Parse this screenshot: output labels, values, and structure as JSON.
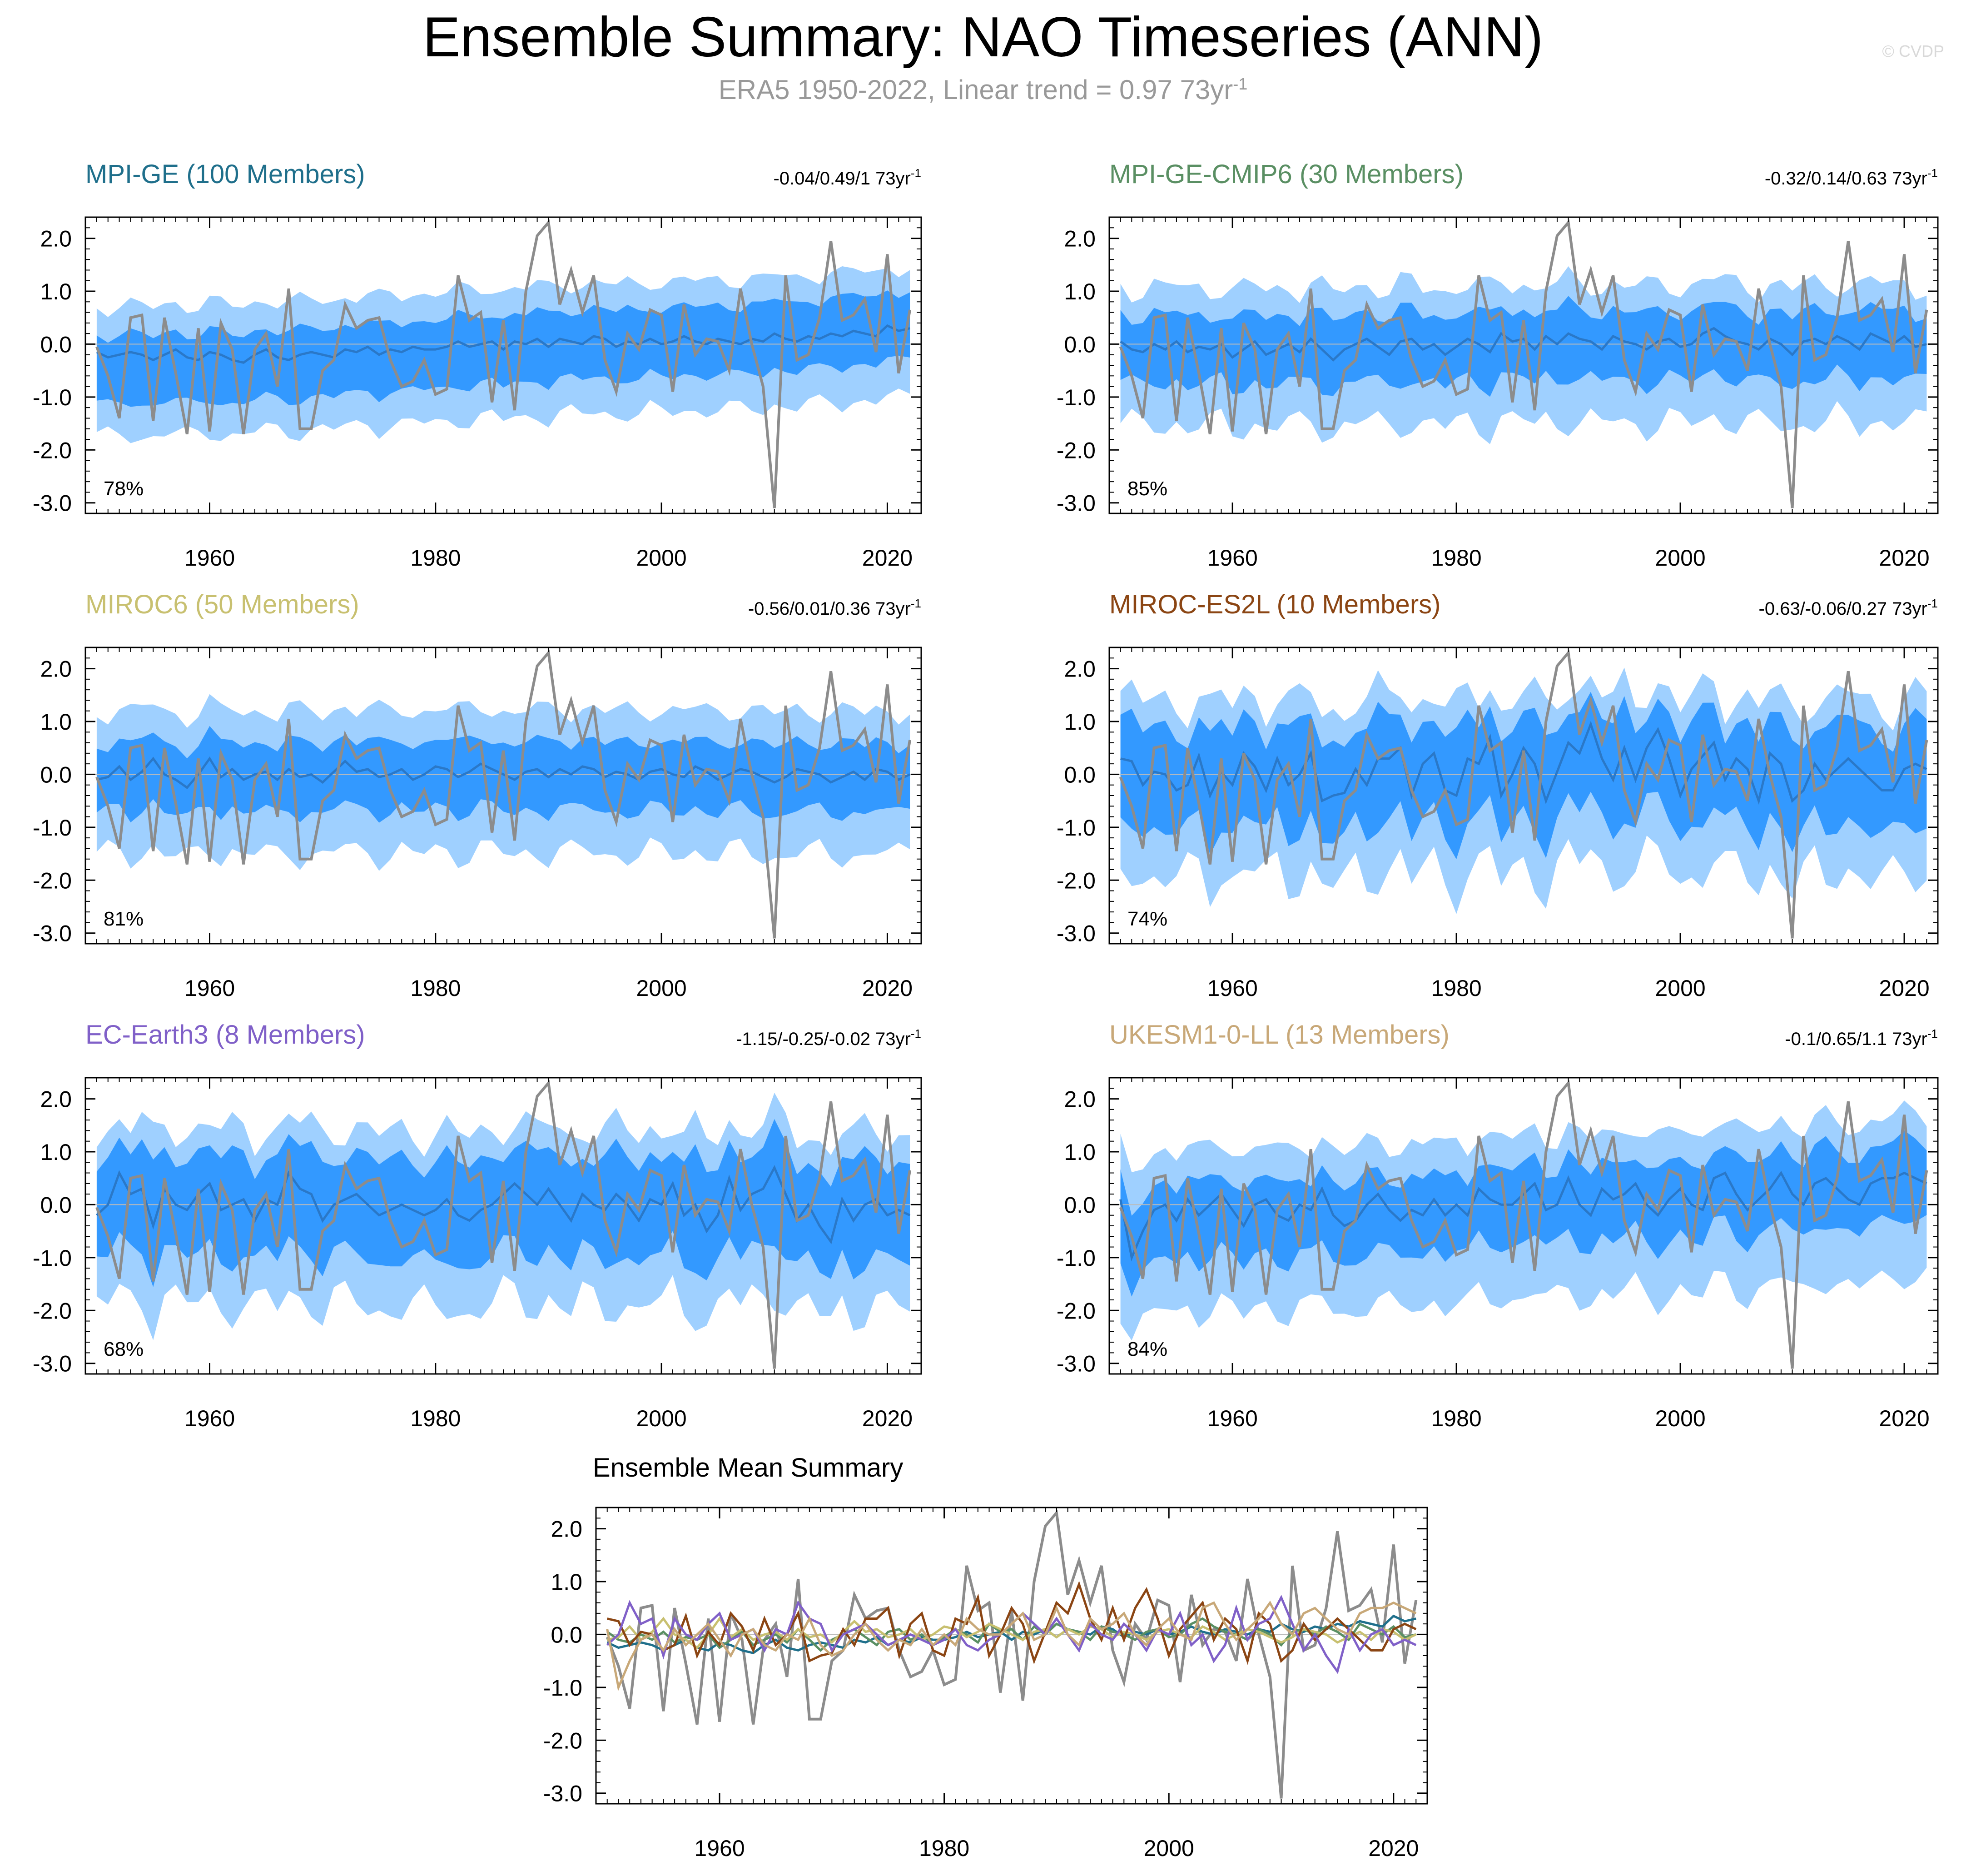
{
  "title": "Ensemble Summary: NAO Timeseries (ANN)",
  "subtitle": {
    "text": "ERA5 1950-2022, Linear trend = 0.97 73yr",
    "sup": "-1"
  },
  "watermark": "© CVDP",
  "colors": {
    "inner_band": "#3399ff",
    "outer_band": "#9fd0ff",
    "ens_mean": "#2a78c8",
    "obs": "#8c8c8c",
    "zero_line": "#bbbbbb"
  },
  "chart_data": {
    "type": "line",
    "x_ticks": [
      1960,
      1980,
      2000,
      2020
    ],
    "x_range": [
      1949,
      2023
    ],
    "y_ticks": [
      2.0,
      1.0,
      0.0,
      -1.0,
      -2.0,
      -3.0
    ],
    "y_tick_labels": [
      "2.0",
      "1.0",
      "0.0",
      "-1.0",
      "-2.0",
      "-3.0"
    ],
    "observations": {
      "name": "ERA5",
      "years": [
        1950,
        1951,
        1952,
        1953,
        1954,
        1955,
        1956,
        1957,
        1958,
        1959,
        1960,
        1961,
        1962,
        1963,
        1964,
        1965,
        1966,
        1967,
        1968,
        1969,
        1970,
        1971,
        1972,
        1973,
        1974,
        1975,
        1976,
        1977,
        1978,
        1979,
        1980,
        1981,
        1982,
        1983,
        1984,
        1985,
        1986,
        1987,
        1988,
        1989,
        1990,
        1991,
        1992,
        1993,
        1994,
        1995,
        1996,
        1997,
        1998,
        1999,
        2000,
        2001,
        2002,
        2003,
        2004,
        2005,
        2006,
        2007,
        2008,
        2009,
        2010,
        2011,
        2012,
        2013,
        2014,
        2015,
        2016,
        2017,
        2018,
        2019,
        2020,
        2021,
        2022
      ],
      "values": [
        -0.05,
        -0.6,
        -1.4,
        0.5,
        0.55,
        -1.45,
        0.5,
        -0.55,
        -1.7,
        0.3,
        -1.65,
        0.4,
        -0.1,
        -1.7,
        -0.1,
        0.2,
        -0.8,
        1.05,
        -1.6,
        -1.6,
        -0.5,
        -0.3,
        0.75,
        0.3,
        0.45,
        0.5,
        -0.3,
        -0.8,
        -0.7,
        -0.3,
        -0.95,
        -0.85,
        1.3,
        0.45,
        0.6,
        -1.1,
        0.45,
        -1.25,
        1.0,
        2.05,
        2.3,
        0.75,
        1.4,
        0.6,
        1.3,
        -0.3,
        -0.9,
        0.2,
        -0.1,
        0.65,
        0.55,
        -0.9,
        0.75,
        -0.2,
        0.1,
        0.05,
        -0.5,
        1.05,
        0.0,
        -0.8,
        -3.1,
        1.3,
        -0.3,
        -0.2,
        0.5,
        1.95,
        0.45,
        0.55,
        0.85,
        -0.15,
        1.7,
        -0.55,
        0.65
      ]
    },
    "ensembles": [
      {
        "name": "MPI-GE",
        "members": 100,
        "title": "MPI-GE (100 Members)",
        "color": "#1f6f8b",
        "stats": {
          "text": "-0.04/0.49/1 73yr",
          "sup": "-1"
        },
        "percent": "78%",
        "ens_mean": [
          -0.15,
          -0.25,
          -0.2,
          -0.15,
          -0.2,
          -0.3,
          -0.2,
          -0.1,
          -0.25,
          -0.3,
          -0.15,
          -0.2,
          -0.3,
          -0.35,
          -0.2,
          -0.1,
          -0.25,
          -0.3,
          -0.2,
          -0.15,
          -0.2,
          -0.25,
          -0.1,
          -0.15,
          -0.05,
          -0.2,
          -0.1,
          -0.15,
          -0.05,
          -0.1,
          -0.1,
          -0.05,
          0.05,
          -0.05,
          0.0,
          0.05,
          -0.1,
          0.05,
          0.0,
          0.1,
          -0.05,
          0.1,
          0.05,
          0.0,
          0.15,
          0.1,
          -0.05,
          0.05,
          0.0,
          0.1,
          0.0,
          0.05,
          0.15,
          0.05,
          0.0,
          0.1,
          0.05,
          0.0,
          0.1,
          0.05,
          0.2,
          0.1,
          0.05,
          0.15,
          0.1,
          0.2,
          0.15,
          0.25,
          0.2,
          0.15,
          0.35,
          0.25,
          0.3
        ],
        "band_lo_outer": -1.4,
        "band_hi_outer": 1.05,
        "band_lo_inner": -0.75,
        "band_hi_inner": 0.55,
        "band_var": 0.22,
        "drift": 0.5
      },
      {
        "name": "MPI-GE-CMIP6",
        "members": 30,
        "title": "MPI-GE-CMIP6 (30 Members)",
        "color": "#5a8f63",
        "stats": {
          "text": "-0.32/0.14/0.63 73yr",
          "sup": "-1"
        },
        "percent": "85%",
        "ens_mean": [
          0.05,
          -0.1,
          -0.15,
          0.0,
          -0.1,
          0.05,
          -0.15,
          -0.05,
          -0.1,
          0.0,
          -0.25,
          -0.1,
          0.05,
          -0.2,
          -0.1,
          0.0,
          -0.15,
          0.1,
          -0.1,
          -0.3,
          -0.1,
          0.0,
          0.1,
          -0.05,
          -0.2,
          0.05,
          0.1,
          -0.1,
          0.0,
          -0.2,
          -0.05,
          0.1,
          0.0,
          -0.15,
          0.2,
          0.05,
          0.1,
          -0.1,
          0.15,
          0.0,
          0.2,
          0.1,
          0.05,
          -0.1,
          0.15,
          0.05,
          0.0,
          -0.1,
          0.05,
          0.1,
          -0.05,
          0.0,
          0.2,
          0.3,
          0.15,
          0.05,
          0.0,
          -0.1,
          0.1,
          0.0,
          -0.2,
          0.05,
          0.1,
          0.0,
          0.15,
          0.05,
          -0.1,
          0.2,
          0.1,
          0.0,
          0.15,
          -0.05,
          0.0
        ],
        "band_lo_outer": -1.5,
        "band_hi_outer": 1.1,
        "band_lo_inner": -0.7,
        "band_hi_inner": 0.6,
        "band_var": 0.35,
        "drift": 0.0
      },
      {
        "name": "MIROC6",
        "members": 50,
        "title": "MIROC6 (50 Members)",
        "color": "#c8c070",
        "stats": {
          "text": "-0.56/0.01/0.36 73yr",
          "sup": "-1"
        },
        "percent": "81%",
        "ens_mean": [
          -0.1,
          -0.05,
          0.15,
          -0.1,
          0.05,
          0.3,
          0.0,
          -0.1,
          -0.25,
          0.0,
          0.3,
          -0.05,
          0.1,
          -0.1,
          0.0,
          0.05,
          -0.1,
          0.1,
          -0.05,
          0.0,
          -0.15,
          0.05,
          0.25,
          0.05,
          0.1,
          -0.05,
          0.0,
          0.1,
          -0.1,
          0.0,
          0.15,
          0.1,
          -0.05,
          0.05,
          0.2,
          0.1,
          0.0,
          -0.1,
          0.05,
          0.1,
          -0.05,
          0.1,
          0.0,
          0.15,
          0.1,
          -0.05,
          0.05,
          0.0,
          -0.1,
          0.05,
          0.1,
          0.0,
          -0.05,
          0.15,
          0.05,
          -0.1,
          0.0,
          0.1,
          0.05,
          -0.05,
          -0.15,
          -0.05,
          0.1,
          0.05,
          0.0,
          -0.15,
          -0.05,
          0.05,
          -0.1,
          0.1,
          0.05,
          -0.1,
          0.0
        ],
        "band_lo_outer": -1.5,
        "band_hi_outer": 1.2,
        "band_lo_inner": -0.7,
        "band_hi_inner": 0.6,
        "band_var": 0.3,
        "drift": 0.0
      },
      {
        "name": "MIROC-ES2L",
        "members": 10,
        "title": "MIROC-ES2L (10 Members)",
        "color": "#8b4513",
        "stats": {
          "text": "-0.63/-0.06/0.27 73yr",
          "sup": "-1"
        },
        "percent": "74%",
        "ens_mean": [
          0.3,
          0.25,
          -0.2,
          0.05,
          0.0,
          -0.3,
          -0.2,
          0.35,
          -0.4,
          0.05,
          -0.2,
          0.4,
          0.15,
          -0.3,
          0.3,
          -0.2,
          0.0,
          0.4,
          -0.5,
          -0.4,
          -0.35,
          0.1,
          -0.2,
          0.3,
          0.3,
          0.5,
          -0.4,
          0.2,
          0.4,
          -0.3,
          -0.4,
          0.3,
          0.2,
          0.7,
          -0.4,
          0.0,
          0.5,
          0.2,
          -0.5,
          0.05,
          0.6,
          0.4,
          0.95,
          0.3,
          -0.1,
          0.5,
          -0.1,
          0.5,
          0.85,
          0.3,
          -0.4,
          0.1,
          0.35,
          0.6,
          -0.1,
          0.3,
          0.1,
          -0.5,
          0.4,
          0.2,
          -0.5,
          -0.3,
          0.2,
          -0.1,
          0.1,
          0.3,
          0.1,
          -0.1,
          -0.3,
          -0.3,
          0.1,
          0.2,
          0.1
        ],
        "band_lo_outer": -1.9,
        "band_hi_outer": 1.4,
        "band_lo_inner": -1.0,
        "band_hi_inner": 0.9,
        "band_var": 0.55,
        "drift": 0.0
      },
      {
        "name": "EC-Earth3",
        "members": 8,
        "title": "EC-Earth3 (8 Members)",
        "color": "#8060c8",
        "stats": {
          "text": "-1.15/-0.25/-0.02 73yr",
          "sup": "-1"
        },
        "percent": "68%",
        "ens_mean": [
          -0.2,
          0.0,
          0.6,
          0.2,
          0.3,
          -0.4,
          0.3,
          0.0,
          -0.1,
          0.2,
          0.4,
          -0.1,
          0.0,
          0.1,
          -0.3,
          0.1,
          0.0,
          0.6,
          0.3,
          0.2,
          -0.3,
          0.0,
          0.1,
          0.2,
          0.0,
          -0.2,
          -0.1,
          0.0,
          -0.1,
          -0.2,
          -0.1,
          0.1,
          -0.2,
          -0.3,
          -0.1,
          0.0,
          0.2,
          0.4,
          0.2,
          0.0,
          0.3,
          0.0,
          -0.3,
          0.2,
          0.0,
          -0.1,
          0.2,
          0.0,
          -0.3,
          0.1,
          0.0,
          0.4,
          -0.2,
          0.0,
          -0.5,
          -0.2,
          0.5,
          -0.1,
          0.2,
          0.3,
          0.7,
          0.2,
          -0.3,
          0.0,
          -0.4,
          -0.7,
          0.1,
          -0.3,
          0.0,
          0.1,
          -0.2,
          -0.1,
          -0.2
        ],
        "band_lo_outer": -1.9,
        "band_hi_outer": 1.4,
        "band_lo_inner": -1.0,
        "band_hi_inner": 0.9,
        "band_var": 0.5,
        "drift": 0.0
      },
      {
        "name": "UKESM1-0-LL",
        "members": 13,
        "title": "UKESM1-0-LL (13 Members)",
        "color": "#c8a878",
        "stats": {
          "text": "-0.1/0.65/1.1 73yr",
          "sup": "-1"
        },
        "percent": "84%",
        "ens_mean": [
          0.1,
          -1.0,
          -0.5,
          -0.1,
          0.0,
          -0.3,
          0.1,
          -0.2,
          0.0,
          0.2,
          -0.1,
          -0.4,
          0.0,
          0.1,
          -0.2,
          -0.3,
          0.0,
          -0.1,
          0.3,
          -0.2,
          -0.4,
          -0.3,
          0.0,
          0.2,
          -0.1,
          -0.3,
          -0.1,
          -0.2,
          0.1,
          -0.2,
          0.0,
          -0.2,
          0.3,
          0.1,
          0.0,
          0.0,
          0.2,
          0.4,
          -0.1,
          0.0,
          0.5,
          0.0,
          -0.2,
          0.3,
          0.1,
          0.2,
          0.4,
          0.0,
          -0.2,
          0.1,
          0.3,
          0.0,
          -0.1,
          0.5,
          0.6,
          0.2,
          -0.1,
          0.1,
          0.3,
          0.6,
          0.2,
          0.0,
          0.4,
          0.5,
          0.3,
          0.1,
          0.0,
          0.4,
          0.5,
          0.5,
          0.6,
          0.5,
          0.4
        ],
        "band_lo_outer": -1.8,
        "band_hi_outer": 1.25,
        "band_lo_inner": -0.8,
        "band_hi_inner": 0.65,
        "band_var": 0.3,
        "drift": 0.4
      }
    ],
    "summary": {
      "title": "Ensemble Mean Summary"
    }
  }
}
